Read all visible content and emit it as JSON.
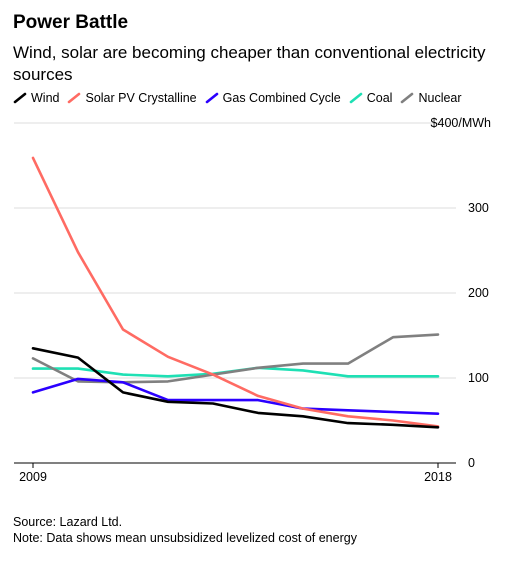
{
  "title": "Power Battle",
  "subtitle": "Wind, solar are becoming cheaper than conventional electricity sources",
  "source": "Source: Lazard Ltd.",
  "note": "Note: Data shows mean unsubsidized levelized cost of energy",
  "chart_data": {
    "type": "line",
    "x": [
      2009,
      2010,
      2011,
      2012,
      2013,
      2014,
      2015,
      2016,
      2017,
      2018
    ],
    "x_tick_labels": [
      "2009",
      "2018"
    ],
    "y_tick_labels": [
      "$400/MWh",
      "300",
      "200",
      "100",
      "0"
    ],
    "ylim": [
      0,
      400
    ],
    "grid": true,
    "legend_position": "top",
    "series": [
      {
        "name": "Wind",
        "color": "#000000",
        "values": [
          135,
          124,
          83,
          72,
          70,
          59,
          55,
          47,
          45,
          42
        ]
      },
      {
        "name": "Solar PV Crystalline",
        "color": "#ff6b63",
        "values": [
          359,
          248,
          157,
          125,
          104,
          79,
          64,
          55,
          50,
          43
        ]
      },
      {
        "name": "Gas Combined Cycle",
        "color": "#2b00ff",
        "values": [
          83,
          99,
          95,
          74,
          74,
          74,
          64,
          62,
          60,
          58
        ]
      },
      {
        "name": "Coal",
        "color": "#1ee0b4",
        "values": [
          111,
          111,
          104,
          102,
          105,
          112,
          109,
          102,
          102,
          102
        ]
      },
      {
        "name": "Nuclear",
        "color": "#808080",
        "values": [
          123,
          96,
          95,
          96,
          104,
          112,
          117,
          117,
          148,
          151
        ]
      }
    ]
  }
}
